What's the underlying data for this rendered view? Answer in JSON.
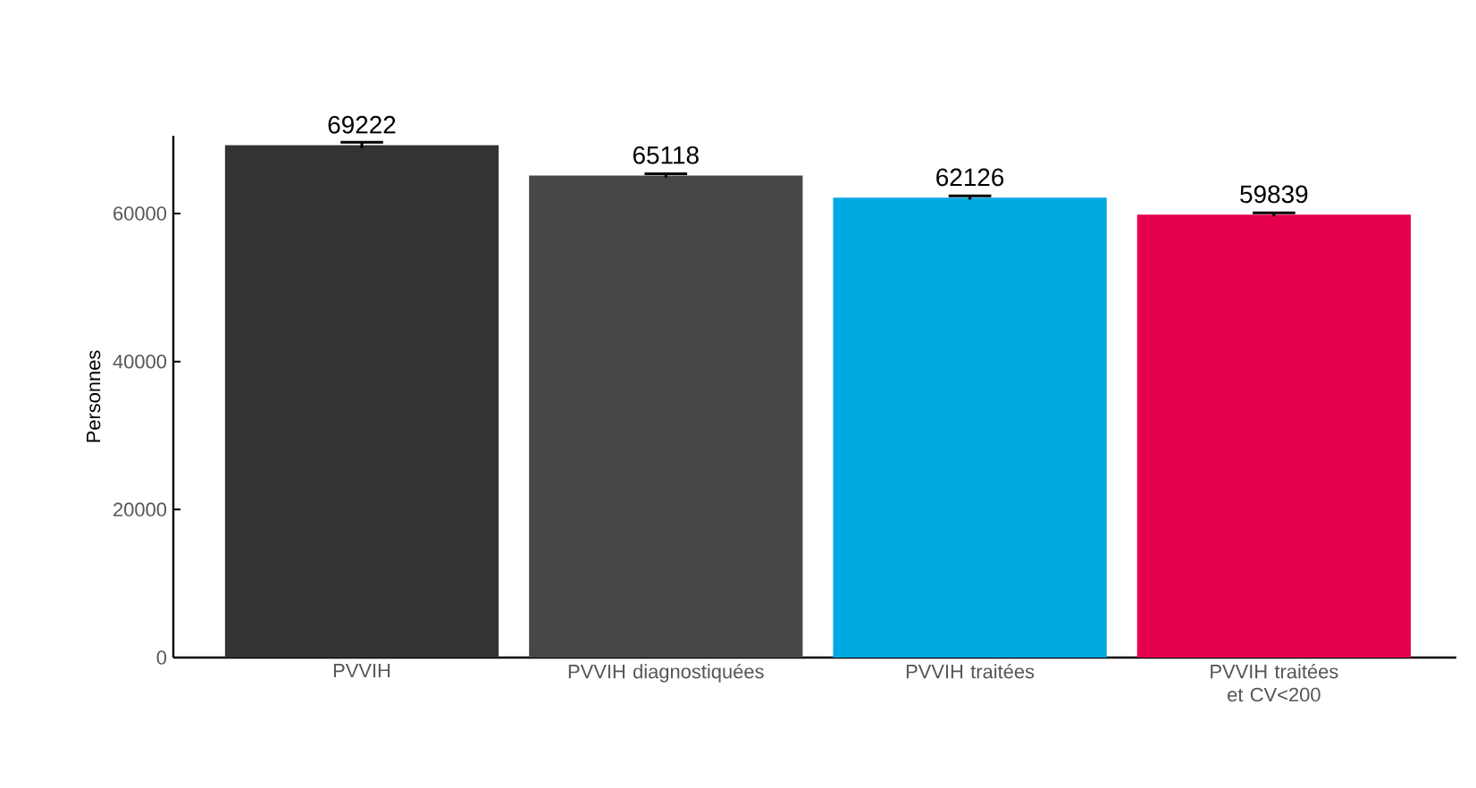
{
  "chart_data": {
    "type": "bar",
    "ylabel": "Personnes",
    "categories": [
      "PVVIH",
      "PVVIH diagnostiquées",
      "PVVIH traitées",
      "PVVIH traitées et CV<200"
    ],
    "values": [
      69222,
      65118,
      62126,
      59839
    ],
    "colors": [
      "#333333",
      "#474747",
      "#00a8e1",
      "#e5004f"
    ],
    "errors": [
      400,
      250,
      250,
      250
    ],
    "data_labels": true,
    "ylim": [
      0,
      70500
    ],
    "yticks": [
      0,
      20000,
      40000,
      60000
    ],
    "grid": false
  }
}
